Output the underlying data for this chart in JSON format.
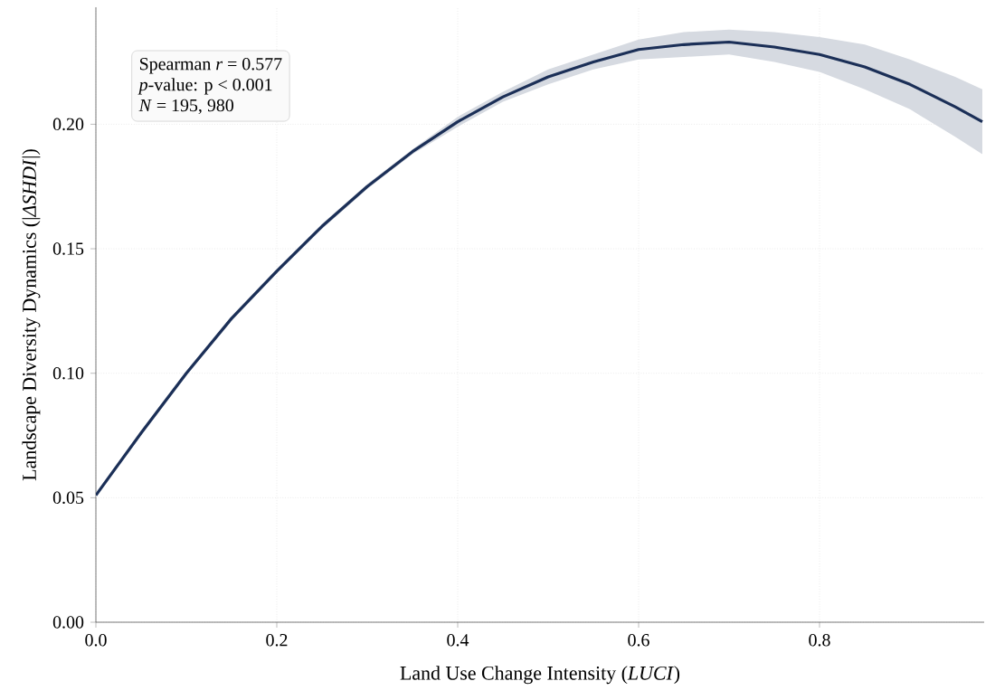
{
  "chart_data": {
    "type": "line",
    "xlabel": "Land Use Change Intensity (*LUCI*)",
    "ylabel": "Landscape Diversity Dynamics (|*ΔSHDI*|)",
    "annotations": [
      "Spearman *r* = 0.577",
      "*p*-value: p < 0.001",
      "*N* = 195, 980"
    ],
    "x": [
      0,
      0.05,
      0.1,
      0.15,
      0.2,
      0.25,
      0.3,
      0.35,
      0.4,
      0.45,
      0.5,
      0.55,
      0.6,
      0.65,
      0.7,
      0.75,
      0.8,
      0.85,
      0.9,
      0.95,
      0.98
    ],
    "series": [
      {
        "color": "#1b2f57",
        "values": [
          0.051,
          0.076,
          0.1,
          0.122,
          0.141,
          0.159,
          0.175,
          0.189,
          0.201,
          0.211,
          0.219,
          0.225,
          0.23,
          0.232,
          0.233,
          0.231,
          0.228,
          0.223,
          0.216,
          0.207,
          0.201
        ],
        "lower": [
          0.05,
          0.075,
          0.099,
          0.121,
          0.14,
          0.158,
          0.174,
          0.188,
          0.199,
          0.209,
          0.216,
          0.222,
          0.226,
          0.227,
          0.228,
          0.225,
          0.221,
          0.214,
          0.206,
          0.195,
          0.188
        ],
        "upper": [
          0.052,
          0.077,
          0.101,
          0.123,
          0.142,
          0.16,
          0.176,
          0.19,
          0.203,
          0.213,
          0.222,
          0.228,
          0.234,
          0.237,
          0.238,
          0.237,
          0.235,
          0.232,
          0.226,
          0.219,
          0.214
        ]
      }
    ],
    "xlim": [
      0,
      0.982
    ],
    "ylim": [
      0,
      0.247
    ],
    "xticks": [
      {
        "value": 0,
        "label": "0.0"
      },
      0.2,
      0.4,
      0.6,
      0.8
    ],
    "yticks": [
      {
        "value": 0,
        "label": "0.00"
      },
      0.05,
      {
        "value": 0.1,
        "label": "0.10"
      },
      0.15,
      {
        "value": 0.2,
        "label": "0.20"
      }
    ],
    "grid": true,
    "marker": "none",
    "line_style": "solid"
  }
}
